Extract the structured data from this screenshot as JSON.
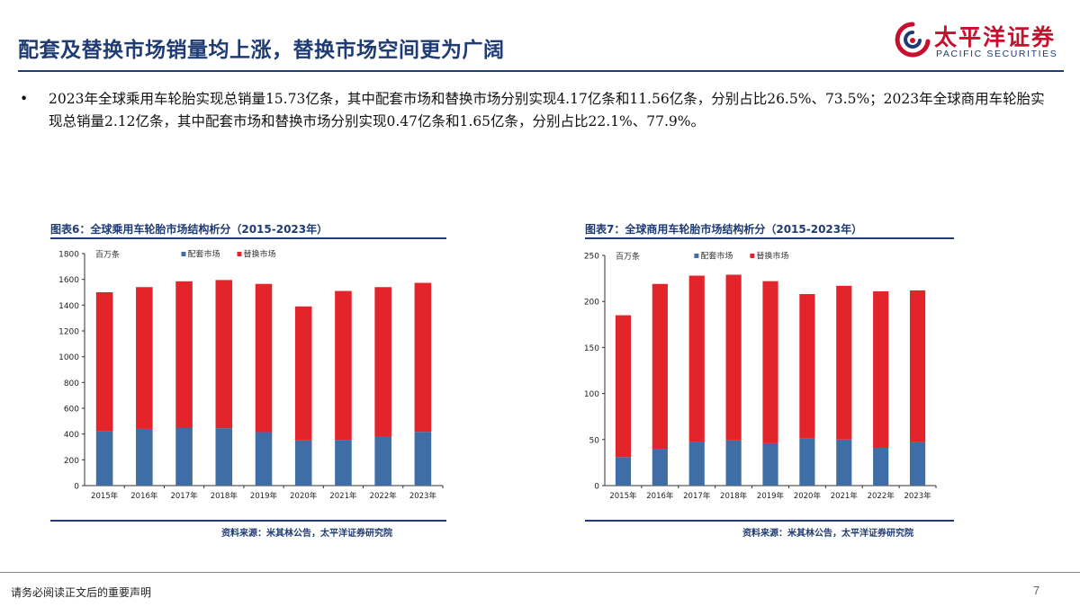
{
  "header": {
    "title": "配套及替换市场销量均上涨，替换市场空间更为广阔",
    "logo_cn": "太平洋证券",
    "logo_en": "PACIFIC SECURITIES",
    "brand_red": "#c8102e",
    "brand_navy": "#1f3b73"
  },
  "body": {
    "bullet_symbol": "•",
    "bullet_text": "2023年全球乘用车轮胎实现总销量15.73亿条，其中配套市场和替换市场分别实现4.17亿条和11.56亿条，分别占比26.5%、73.5%；2023年全球商用车轮胎实现总销量2.12亿条，其中配套市场和替换市场分别实现0.47亿条和1.65亿条，分别占比22.1%、77.9%。"
  },
  "chart_data": [
    {
      "type": "bar",
      "stacked": true,
      "caption": "图表6：全球乘用车轮胎市场结构析分（2015-2023年）",
      "unit_label": "百万条",
      "categories": [
        "2015年",
        "2016年",
        "2017年",
        "2018年",
        "2019年",
        "2020年",
        "2021年",
        "2022年",
        "2023年"
      ],
      "series": [
        {
          "name": "配套市场",
          "color": "#3f6ea6",
          "values": [
            420,
            440,
            450,
            445,
            415,
            350,
            355,
            380,
            417
          ]
        },
        {
          "name": "替换市场",
          "color": "#e3242b",
          "values": [
            1080,
            1100,
            1135,
            1150,
            1150,
            1040,
            1155,
            1160,
            1156
          ]
        }
      ],
      "ylim": [
        0,
        1800
      ],
      "yticks": [
        0,
        200,
        400,
        600,
        800,
        1000,
        1200,
        1400,
        1600,
        1800
      ],
      "legend": "top",
      "grid": false,
      "source": "资料来源：米其林公告，太平洋证券研究院"
    },
    {
      "type": "bar",
      "stacked": true,
      "caption": "图表7：全球商用车轮胎市场结构析分（2015-2023年）",
      "unit_label": "百万条",
      "categories": [
        "2015年",
        "2016年",
        "2017年",
        "2018年",
        "2019年",
        "2020年",
        "2021年",
        "2022年",
        "2023年"
      ],
      "series": [
        {
          "name": "配套市场",
          "color": "#3f6ea6",
          "values": [
            31,
            40,
            47,
            49,
            46,
            51,
            50,
            41,
            47
          ]
        },
        {
          "name": "替换市场",
          "color": "#e3242b",
          "values": [
            154,
            179,
            181,
            180,
            176,
            157,
            167,
            170,
            165
          ]
        }
      ],
      "ylim": [
        0,
        250
      ],
      "yticks": [
        0,
        50,
        100,
        150,
        200,
        250
      ],
      "legend": "top",
      "grid": false,
      "source": "资料来源：米其林公告，太平洋证券研究院"
    }
  ],
  "footer": {
    "disclaimer": "请务必阅读正文后的重要声明",
    "page_number": "7"
  }
}
